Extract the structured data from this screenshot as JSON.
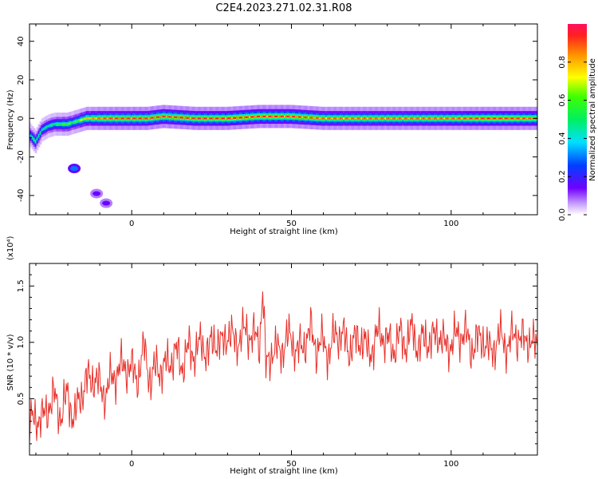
{
  "figure": {
    "title": "C2E4.2023.271.02.31.R08"
  },
  "chart_data": [
    {
      "type": "heatmap",
      "title": "C2E4.2023.271.02.31.R08",
      "xlabel": "Height of straight line (km)",
      "ylabel": "Frequency (Hz)",
      "xlim": [
        -32,
        127
      ],
      "ylim": [
        -50,
        49
      ],
      "x_ticks": [
        0,
        50,
        100
      ],
      "y_ticks": [
        -40,
        -20,
        0,
        20,
        40
      ],
      "colorbar": {
        "label": "Normalized spectral amplitude",
        "range": [
          0.0,
          1.0
        ],
        "ticks": [
          0.0,
          0.2,
          0.4,
          0.6,
          0.8
        ],
        "colormap": "rainbow (white-purple-blue-cyan-green-yellow-orange-red)"
      },
      "ridge": {
        "description": "doppler frequency of peak spectral amplitude vs height",
        "x": [
          -32,
          -30,
          -28,
          -26,
          -24,
          -22,
          -20,
          -18,
          -16,
          -14,
          -12,
          -10,
          -5,
          0,
          5,
          10,
          20,
          30,
          40,
          50,
          60,
          70,
          80,
          90,
          100,
          110,
          120,
          127
        ],
        "y": [
          -8,
          -12,
          -6,
          -4,
          -3,
          -3,
          -3,
          -2,
          -1,
          0,
          0,
          0,
          0,
          0,
          0,
          1,
          0,
          0,
          1,
          1,
          0,
          0,
          0,
          0,
          0,
          0,
          0,
          0
        ],
        "peak_amplitude": [
          0.5,
          0.6,
          0.5,
          0.5,
          0.55,
          0.6,
          0.65,
          0.6,
          0.7,
          0.8,
          0.85,
          0.9,
          0.95,
          0.95,
          0.95,
          0.95,
          0.95,
          0.95,
          0.95,
          0.95,
          0.9,
          0.9,
          0.9,
          0.9,
          0.9,
          0.95,
          0.95,
          0.9
        ]
      },
      "islands": [
        {
          "x": -18,
          "y": -26,
          "amplitude": 0.3
        },
        {
          "x": -11,
          "y": -39,
          "amplitude": 0.15
        },
        {
          "x": -8,
          "y": -44,
          "amplitude": 0.15
        }
      ]
    },
    {
      "type": "line",
      "xlabel": "Height of straight line (km)",
      "ylabel": "SNR (10 * v/v)",
      "y_multiplier": "(x10⁴)",
      "xlim": [
        -32,
        127
      ],
      "ylim": [
        0.0,
        1.7
      ],
      "x_ticks": [
        0,
        50,
        100
      ],
      "y_ticks": [
        0.5,
        1.0,
        1.5
      ],
      "series": [
        {
          "color": "#e8312a",
          "x": [
            -32,
            -30,
            -28,
            -26,
            -24,
            -22,
            -20,
            -18,
            -16,
            -14,
            -12,
            -10,
            -8,
            -6,
            -4,
            -2,
            0,
            2,
            4,
            6,
            8,
            10,
            12,
            14,
            16,
            18,
            20,
            22,
            24,
            26,
            28,
            30,
            32,
            34,
            36,
            38,
            40,
            41,
            42,
            44,
            46,
            48,
            50,
            52,
            54,
            56,
            58,
            60,
            62,
            64,
            66,
            68,
            70,
            72,
            74,
            76,
            78,
            80,
            82,
            84,
            86,
            88,
            90,
            92,
            94,
            96,
            98,
            100,
            102,
            104,
            106,
            108,
            110,
            112,
            114,
            116,
            118,
            120,
            122,
            124,
            126,
            127
          ],
          "y": [
            0.25,
            0.35,
            0.3,
            0.45,
            0.5,
            0.35,
            0.55,
            0.3,
            0.55,
            0.65,
            0.7,
            0.6,
            0.55,
            0.7,
            0.75,
            0.8,
            0.75,
            0.7,
            0.95,
            0.65,
            0.8,
            0.75,
            0.85,
            0.9,
            0.8,
            0.95,
            0.9,
            1.0,
            0.9,
            1.05,
            0.95,
            1.1,
            1.0,
            1.05,
            1.1,
            1.05,
            1.0,
            1.5,
            0.75,
            0.95,
            0.9,
            1.0,
            1.05,
            0.9,
            1.0,
            1.1,
            0.95,
            1.0,
            0.9,
            1.1,
            1.05,
            0.95,
            1.0,
            1.05,
            0.9,
            1.0,
            1.1,
            1.0,
            0.95,
            1.05,
            1.0,
            1.1,
            0.95,
            1.05,
            1.0,
            1.1,
            0.95,
            1.0,
            1.05,
            1.1,
            0.95,
            1.0,
            1.05,
            0.9,
            1.0,
            1.05,
            0.95,
            1.1,
            1.0,
            1.05,
            0.95,
            1.0
          ]
        }
      ]
    }
  ]
}
